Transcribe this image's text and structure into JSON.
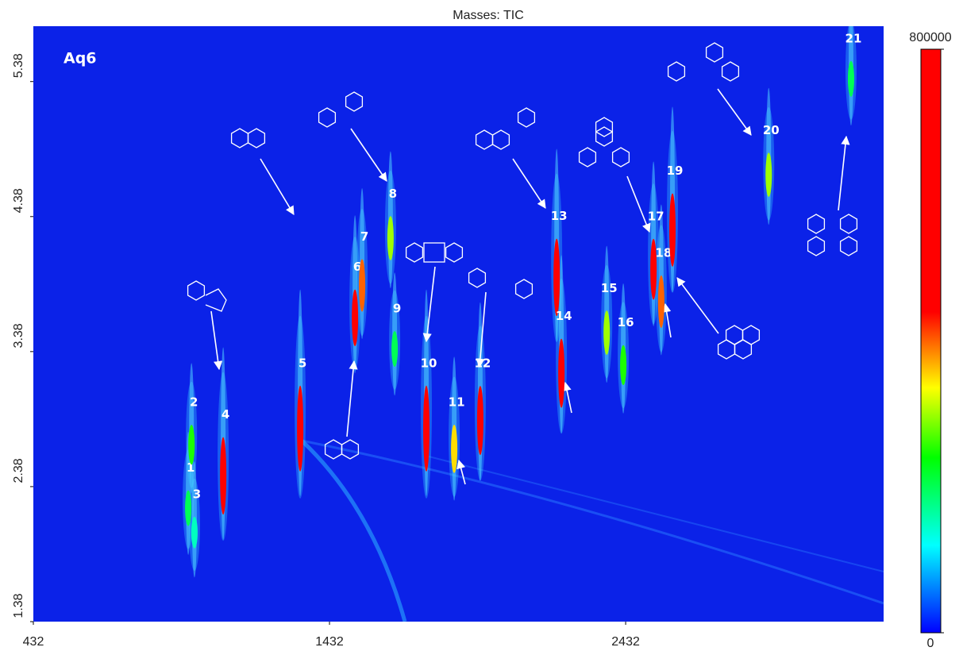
{
  "chart_data": {
    "type": "gcxgc",
    "title": "Masses:  TIC",
    "annotation": "Aq6",
    "xlim": [
      432,
      3303
    ],
    "xticks": [
      432,
      1432,
      2432
    ],
    "ylim": [
      1.38,
      5.79
    ],
    "yticks": [
      1.38,
      2.38,
      3.38,
      4.38,
      5.38
    ],
    "colorbar": {
      "range": [
        0,
        800000
      ],
      "ticks": [
        0,
        800000
      ]
    },
    "background": "#0b22e8",
    "peaks": {
      "labels": [
        "1",
        "2",
        "3",
        "4",
        "5",
        "6",
        "7",
        "8",
        "9",
        "10",
        "11",
        "12",
        "13",
        "14",
        "15",
        "16",
        "17",
        "18",
        "19",
        "20",
        "21"
      ],
      "x": [
        955,
        966,
        976,
        1073,
        1333,
        1518,
        1542,
        1638,
        1652,
        1759,
        1853,
        1941,
        2199,
        2215,
        2368,
        2424,
        2526,
        2552,
        2590,
        2915,
        3193
      ],
      "y": [
        2.22,
        2.69,
        2.04,
        2.46,
        2.81,
        3.63,
        3.87,
        4.22,
        3.4,
        2.81,
        2.66,
        2.87,
        3.93,
        3.22,
        3.52,
        3.28,
        3.99,
        3.75,
        4.28,
        4.69,
        5.4
      ],
      "intensity": [
        200000,
        250000,
        150000,
        700000,
        800000,
        450000,
        400000,
        300000,
        200000,
        800000,
        350000,
        600000,
        700000,
        600000,
        300000,
        250000,
        500000,
        400000,
        650000,
        300000,
        200000
      ]
    }
  }
}
